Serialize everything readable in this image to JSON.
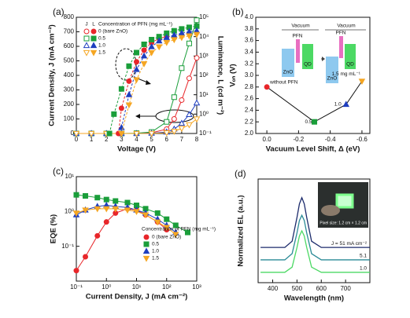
{
  "chart_data": [
    {
      "type": "line",
      "panel_label": "(a)",
      "xlabel": "Voltage (V)",
      "ylabel": "Current Density, J (mA cm⁻²)",
      "y2label": "Luminance, L (cd m⁻²)",
      "xlim": [
        0,
        8
      ],
      "xticks": [
        0,
        1,
        2,
        3,
        4,
        5,
        6,
        7,
        8
      ],
      "ylim": [
        0,
        800
      ],
      "yticks": [
        0,
        100,
        200,
        300,
        400,
        500,
        600,
        700,
        800
      ],
      "y2lim": [
        0.1,
        100000
      ],
      "y2log": true,
      "y2ticks": [
        {
          "value": 0.1,
          "label": "10⁻¹"
        },
        {
          "value": 1,
          "label": "10⁰"
        },
        {
          "value": 10,
          "label": "10¹"
        },
        {
          "value": 100,
          "label": "10²"
        },
        {
          "value": 1000,
          "label": "10³"
        },
        {
          "value": 10000,
          "label": "10⁴"
        },
        {
          "value": 100000,
          "label": "10⁵"
        }
      ],
      "legend_headers": [
        "J",
        "L"
      ],
      "legend_title": "Concentration of PFN (mg mL⁻¹)",
      "series": [
        {
          "name": "0 (bare ZnO)",
          "color": "#e8262a",
          "marker": "circle",
          "filled": false,
          "x": [
            0,
            1,
            2,
            3,
            4,
            5,
            6,
            6.5,
            7,
            7.5,
            8
          ],
          "values": [
            0,
            0,
            0,
            0,
            1,
            5,
            30,
            100,
            230,
            380,
            520
          ]
        },
        {
          "name": "0.5",
          "color": "#1a9e3a",
          "marker": "square",
          "filled": false,
          "x": [
            0,
            1,
            2,
            3,
            4,
            5,
            6,
            6.5,
            7,
            7.5,
            8
          ],
          "values": [
            0,
            0,
            0,
            0,
            2,
            10,
            80,
            250,
            450,
            620,
            780
          ]
        },
        {
          "name": "1.0",
          "color": "#1f3fbf",
          "marker": "triangle",
          "filled": false,
          "x": [
            0,
            1,
            2,
            3,
            4,
            5,
            6,
            6.5,
            7,
            7.5,
            8
          ],
          "values": [
            0,
            0,
            0,
            0,
            0,
            2,
            10,
            30,
            70,
            130,
            210
          ]
        },
        {
          "name": "1.5",
          "color": "#f5a623",
          "marker": "triangle-down",
          "filled": false,
          "x": [
            0,
            1,
            2,
            3,
            4,
            5,
            6,
            6.5,
            7,
            7.5,
            8
          ],
          "values": [
            0,
            0,
            0,
            0,
            0,
            1,
            5,
            15,
            35,
            60,
            100
          ]
        },
        {
          "axis": "y2",
          "dashed": true,
          "color": "#e8262a",
          "marker": "circle",
          "filled": true,
          "x": [
            2.8,
            3,
            3.5,
            4,
            4.5,
            5,
            5.5,
            6
          ],
          "values": [
            0.1,
            2,
            50,
            500,
            2000,
            5000,
            8000,
            10000
          ]
        },
        {
          "axis": "y2",
          "dashed": true,
          "color": "#1a9e3a",
          "marker": "square",
          "filled": true,
          "x": [
            2.2,
            2.5,
            3,
            3.5,
            4,
            4.5,
            5,
            5.5,
            6,
            6.5,
            7,
            7.5,
            8
          ],
          "values": [
            0.1,
            1,
            20,
            300,
            1500,
            4000,
            7000,
            10000,
            15000,
            20000,
            25000,
            30000,
            35000
          ]
        },
        {
          "axis": "y2",
          "dashed": true,
          "color": "#1f3fbf",
          "marker": "triangle",
          "filled": true,
          "x": [
            3,
            3.5,
            4,
            4.5,
            5,
            5.5,
            6,
            6.5,
            7,
            7.5,
            8
          ],
          "values": [
            0.2,
            10,
            200,
            1000,
            3000,
            6000,
            9000,
            12000,
            15000,
            18000,
            20000
          ]
        },
        {
          "axis": "y2",
          "dashed": true,
          "color": "#f5a623",
          "marker": "triangle-down",
          "filled": true,
          "x": [
            3,
            3.5,
            4,
            4.5,
            5,
            5.5,
            6,
            6.5,
            7,
            7.5,
            8
          ],
          "values": [
            0.1,
            3,
            60,
            400,
            1500,
            3000,
            5000,
            7000,
            9000,
            11000,
            13000
          ]
        }
      ]
    },
    {
      "type": "scatter",
      "panel_label": "(b)",
      "xlabel": "Vacuum Level Shift, Δ (eV)",
      "ylabel": "Vₒₙ (V)",
      "xlim": [
        0.07,
        -0.65
      ],
      "xticks": [
        {
          "value": 0,
          "label": "0.0"
        },
        -0.2,
        -0.4,
        -0.6
      ],
      "ylim": [
        2.0,
        4.0
      ],
      "yticks": [
        {
          "value": 2.0,
          "label": "2.0"
        },
        2.2,
        2.4,
        2.6,
        2.8,
        {
          "value": 3.0,
          "label": "3.0"
        },
        3.2,
        3.4,
        3.6,
        3.8,
        {
          "value": 4.0,
          "label": "4.0"
        }
      ],
      "x": [
        0,
        -0.3,
        -0.5,
        -0.6
      ],
      "values": [
        2.8,
        2.2,
        2.5,
        2.9
      ],
      "colors": [
        "#e8262a",
        "#1a9e3a",
        "#1f3fbf",
        "#f5a623"
      ],
      "markers": [
        "circle",
        "square",
        "triangle",
        "triangle-down"
      ],
      "line_color": "#111",
      "point_labels": [
        "without PFN",
        "0.5",
        "1.0",
        "1.5 mg mL⁻¹"
      ],
      "inset_labels": [
        "Vacuum",
        "PFN",
        "ZnO",
        "QD",
        "Vacuum",
        "PFN",
        "ZnO",
        "QD"
      ]
    },
    {
      "type": "line",
      "panel_label": "(c)",
      "xlabel": "Current Density, J (mA cm⁻²)",
      "ylabel": "EQE (%)",
      "xlim": [
        0.1,
        1000
      ],
      "xlog": true,
      "xticks": [
        {
          "value": 0.1,
          "label": "10⁻¹"
        },
        {
          "value": 1,
          "label": "10⁰"
        },
        {
          "value": 10,
          "label": "10¹"
        },
        {
          "value": 100,
          "label": "10²"
        },
        {
          "value": 1000,
          "label": "10³"
        }
      ],
      "ylim": [
        0.01,
        10
      ],
      "ylog": true,
      "yticks": [
        {
          "value": 0.1,
          "label": "10⁻¹"
        },
        {
          "value": 1,
          "label": "10⁰"
        },
        {
          "value": 10,
          "label": "10¹"
        }
      ],
      "legend_title": "Concentration of PFN (mg mL⁻¹)",
      "series": [
        {
          "name": "0 (bare ZnO)",
          "color": "#e8262a",
          "marker": "circle",
          "filled": true,
          "x": [
            0.1,
            0.2,
            0.5,
            1,
            2,
            5,
            10,
            20,
            50,
            100
          ],
          "values": [
            0.02,
            0.05,
            0.2,
            0.5,
            0.9,
            1.2,
            1.1,
            0.8,
            0.5,
            0.3
          ]
        },
        {
          "name": "0.5",
          "color": "#1a9e3a",
          "marker": "square",
          "filled": true,
          "x": [
            0.1,
            0.2,
            0.5,
            1,
            2,
            5,
            10,
            20,
            50,
            100,
            200,
            500
          ],
          "values": [
            3,
            2.8,
            2.5,
            2.2,
            2,
            1.8,
            1.5,
            1.2,
            0.9,
            0.6,
            0.4,
            0.25
          ]
        },
        {
          "name": "1.0",
          "color": "#1f3fbf",
          "marker": "triangle",
          "filled": true,
          "x": [
            0.1,
            0.2,
            0.5,
            1,
            2,
            5,
            10,
            20,
            50,
            100,
            200
          ],
          "values": [
            0.8,
            1.1,
            1.4,
            1.5,
            1.4,
            1.3,
            1.1,
            0.9,
            0.6,
            0.4,
            0.25
          ]
        },
        {
          "name": "1.5",
          "color": "#f5a623",
          "marker": "triangle-down",
          "filled": true,
          "x": [
            0.1,
            0.2,
            0.5,
            1,
            2,
            5,
            10,
            20,
            50,
            100,
            200
          ],
          "values": [
            0.9,
            1.1,
            1.2,
            1.2,
            1.2,
            1.1,
            1,
            0.8,
            0.5,
            0.35,
            0.22
          ]
        }
      ]
    },
    {
      "type": "line",
      "panel_label": "(d)",
      "xlabel": "Wavelength (nm)",
      "ylabel": "Normalized EL (a.u.)",
      "xlim": [
        340,
        800
      ],
      "xticks": [
        400,
        500,
        600,
        700
      ],
      "ylim": [
        0,
        1
      ],
      "photo_caption": "Pixel size: 1.2 cm × 1.2 cm",
      "series": [
        {
          "name": "J = 51 mA cm⁻²",
          "color": "#1b2a6b",
          "x": [
            350,
            400,
            450,
            480,
            500,
            510,
            520,
            530,
            540,
            560,
            600,
            650,
            700,
            750,
            800
          ],
          "values": [
            0.34,
            0.34,
            0.34,
            0.4,
            0.63,
            0.76,
            0.82,
            0.76,
            0.63,
            0.4,
            0.34,
            0.34,
            0.34,
            0.34,
            0.34
          ]
        },
        {
          "name": "5.1",
          "color": "#2a8a96",
          "x": [
            350,
            400,
            450,
            480,
            500,
            510,
            520,
            530,
            540,
            560,
            600,
            650,
            700,
            750,
            800
          ],
          "values": [
            0.22,
            0.22,
            0.22,
            0.28,
            0.48,
            0.6,
            0.65,
            0.6,
            0.48,
            0.28,
            0.22,
            0.22,
            0.22,
            0.22,
            0.22
          ]
        },
        {
          "name": "1.0",
          "color": "#4cd964",
          "x": [
            350,
            400,
            450,
            480,
            500,
            510,
            520,
            530,
            540,
            560,
            600,
            650,
            700,
            750,
            800
          ],
          "values": [
            0.1,
            0.1,
            0.1,
            0.15,
            0.34,
            0.45,
            0.5,
            0.45,
            0.34,
            0.15,
            0.1,
            0.1,
            0.1,
            0.1,
            0.1
          ]
        }
      ]
    }
  ]
}
